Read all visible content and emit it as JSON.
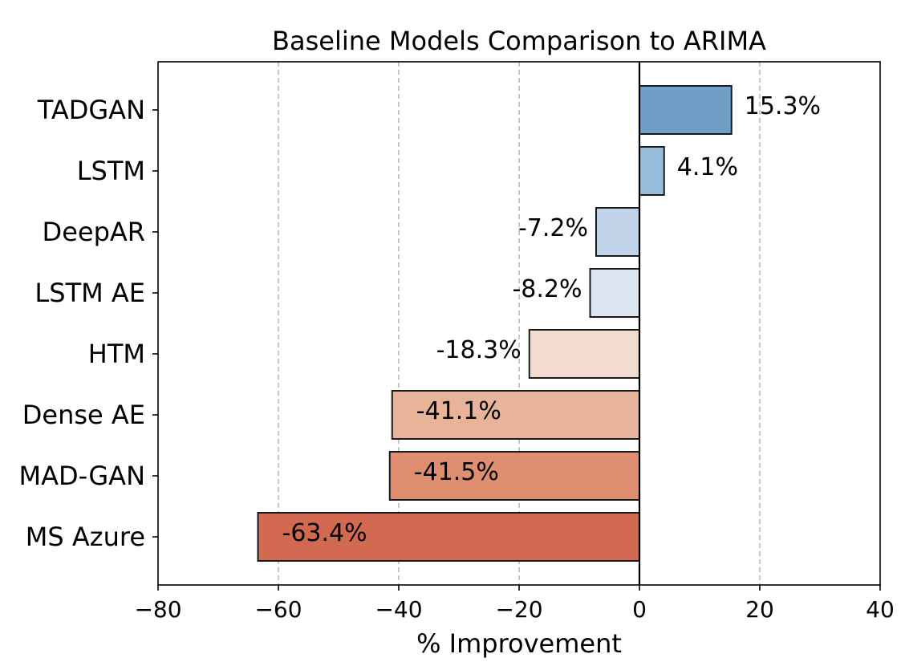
{
  "chart_data": {
    "type": "bar",
    "orientation": "horizontal",
    "title": "Baseline Models Comparison to ARIMA",
    "xlabel": "% Improvement",
    "ylabel": "",
    "xlim": [
      -80,
      40
    ],
    "xticks": [
      -80,
      -60,
      -40,
      -20,
      0,
      20,
      40
    ],
    "xtick_labels": [
      "−80",
      "−60",
      "−40",
      "−20",
      "0",
      "20",
      "40"
    ],
    "grid": "vertical dashed",
    "categories": [
      "TADGAN",
      "LSTM",
      "DeepAR",
      "LSTM AE",
      "HTM",
      "Dense AE",
      "MAD-GAN",
      "MS Azure"
    ],
    "values": [
      15.3,
      4.1,
      -7.2,
      -8.2,
      -18.3,
      -41.1,
      -41.5,
      -63.4
    ],
    "value_labels": [
      "15.3%",
      "4.1%",
      "-7.2%",
      "-8.2%",
      "-18.3%",
      "-41.1%",
      "-41.5%",
      "-63.4%"
    ],
    "colors": [
      "#6f9ec7",
      "#97bcd9",
      "#c2d4e9",
      "#dce7f2",
      "#f2dccf",
      "#e7b49a",
      "#df8e6f",
      "#d26a52"
    ]
  }
}
